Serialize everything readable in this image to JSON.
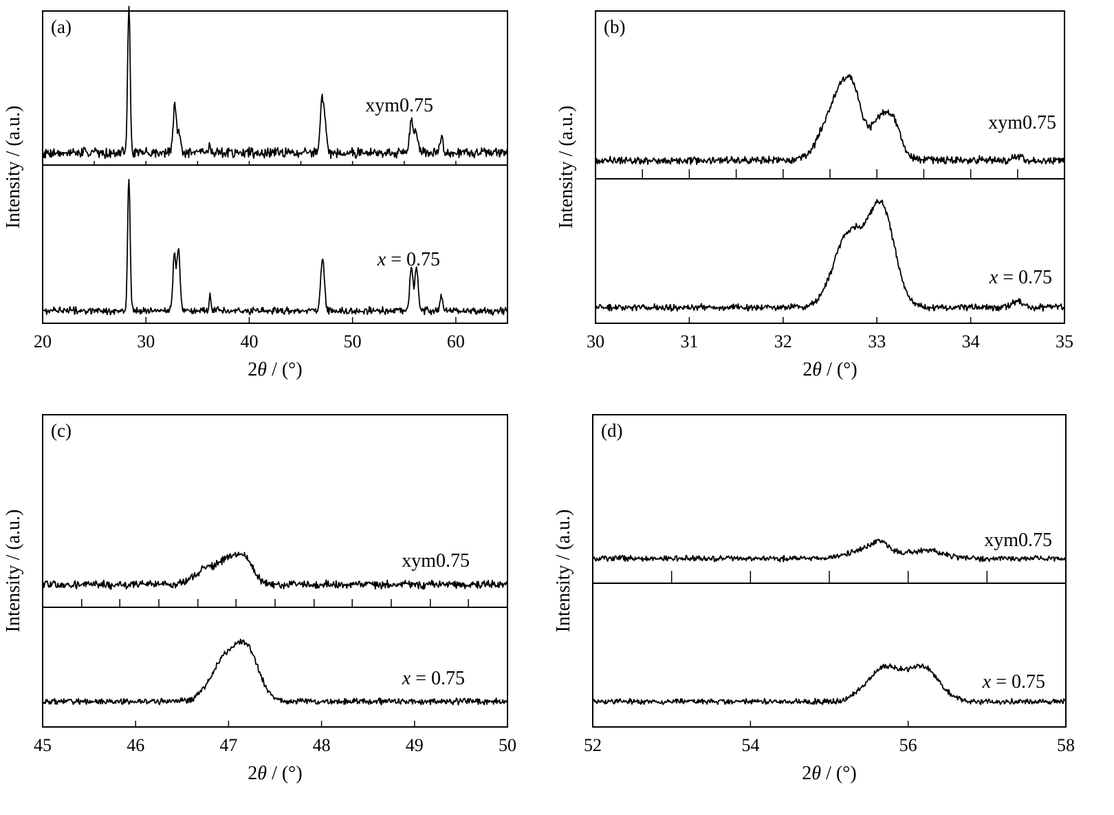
{
  "chart_data": [
    {
      "type": "line",
      "panel_label": "(a)",
      "xlabel_prefix": "2",
      "xlabel_symbol": "θ",
      "xlabel_suffix": " / (°)",
      "ylabel": "Intensity / (a.u.)",
      "xlim": [
        20,
        65
      ],
      "xticks": [
        "20",
        "30",
        "40",
        "50",
        "60"
      ],
      "xtick_values": [
        20,
        30,
        40,
        50,
        60
      ],
      "minor_ticks": [
        25,
        30,
        35,
        40,
        45,
        50,
        55,
        60
      ],
      "series": [
        {
          "name": "xym0.75",
          "name_var": "",
          "name_rest": "xym0.75",
          "noise": 0.05,
          "peaks": [
            [
              28.35,
              1.0,
              0.12
            ],
            [
              32.8,
              0.32,
              0.16
            ],
            [
              33.25,
              0.13,
              0.14
            ],
            [
              36.2,
              0.06,
              0.1
            ],
            [
              47.2,
              0.33,
              0.2
            ],
            [
              46.95,
              0.14,
              0.14
            ],
            [
              55.7,
              0.2,
              0.2
            ],
            [
              56.2,
              0.13,
              0.18
            ],
            [
              58.6,
              0.1,
              0.15
            ]
          ]
        },
        {
          "name": "x = 0.75",
          "name_var": "x",
          "name_rest": " = 0.75",
          "noise": 0.035,
          "peaks": [
            [
              28.35,
              1.0,
              0.12
            ],
            [
              32.75,
              0.43,
              0.14
            ],
            [
              33.15,
              0.47,
              0.14
            ],
            [
              36.2,
              0.13,
              0.08
            ],
            [
              47.1,
              0.4,
              0.18
            ],
            [
              55.7,
              0.33,
              0.16
            ],
            [
              56.2,
              0.32,
              0.16
            ],
            [
              58.6,
              0.1,
              0.14
            ]
          ]
        }
      ]
    },
    {
      "type": "line",
      "panel_label": "(b)",
      "xlabel_prefix": "2",
      "xlabel_symbol": "θ",
      "xlabel_suffix": " / (°)",
      "ylabel": "Intensity / (a.u.)",
      "xlim": [
        30,
        35
      ],
      "xticks": [
        "30",
        "31",
        "32",
        "33",
        "34",
        "35"
      ],
      "xtick_values": [
        30,
        31,
        32,
        33,
        34,
        35
      ],
      "minor_ticks": [
        30.5,
        31,
        31.5,
        32,
        32.5,
        33,
        33.5,
        34,
        34.5
      ],
      "series": [
        {
          "name": "xym0.75",
          "name_var": "",
          "name_rest": "xym0.75",
          "noise": 0.05,
          "peaks": [
            [
              32.6,
              0.62,
              0.16
            ],
            [
              32.75,
              0.35,
              0.1
            ],
            [
              33.05,
              0.4,
              0.1
            ],
            [
              33.2,
              0.25,
              0.08
            ],
            [
              34.5,
              0.04,
              0.05
            ]
          ]
        },
        {
          "name": "x = 0.75",
          "name_var": "x",
          "name_rest": " = 0.75",
          "noise": 0.03,
          "peaks": [
            [
              32.7,
              0.6,
              0.16
            ],
            [
              33.05,
              0.8,
              0.14
            ],
            [
              34.5,
              0.05,
              0.06
            ]
          ]
        }
      ]
    },
    {
      "type": "line",
      "panel_label": "(c)",
      "xlabel_prefix": "2",
      "xlabel_symbol": "θ",
      "xlabel_suffix": " / (°)",
      "ylabel": "Intensity / (a.u.)",
      "xlim": [
        45,
        50
      ],
      "xticks": [
        "45",
        "46",
        "47",
        "48",
        "49",
        "50"
      ],
      "xtick_values": [
        45,
        46,
        47,
        48,
        49,
        50
      ],
      "minor_ticks": [
        45.42,
        45.83,
        46.25,
        46.67,
        47.08,
        47.5,
        47.92,
        48.33,
        48.75,
        49.17,
        49.58
      ],
      "series": [
        {
          "name": "xym0.75",
          "name_var": "",
          "name_rest": "xym0.75",
          "noise": 0.07,
          "peaks": [
            [
              46.75,
              0.22,
              0.13
            ],
            [
              47.05,
              0.45,
              0.14
            ],
            [
              47.2,
              0.18,
              0.07
            ]
          ]
        },
        {
          "name": "x = 0.75",
          "name_var": "x",
          "name_rest": " = 0.75",
          "noise": 0.025,
          "peaks": [
            [
              46.95,
              0.45,
              0.15
            ],
            [
              47.2,
              0.55,
              0.13
            ]
          ]
        }
      ]
    },
    {
      "type": "line",
      "panel_label": "(d)",
      "xlabel_prefix": "2",
      "xlabel_symbol": "θ",
      "xlabel_suffix": " / (°)",
      "ylabel": "Intensity / (a.u.)",
      "xlim": [
        52,
        58
      ],
      "xticks": [
        "52",
        "54",
        "56",
        "58"
      ],
      "xtick_values": [
        52,
        54,
        56,
        58
      ],
      "minor_ticks": [
        53,
        54,
        55,
        56,
        57
      ],
      "series": [
        {
          "name": "xym0.75",
          "name_var": "",
          "name_rest": "xym0.75",
          "noise": 0.04,
          "peaks": [
            [
              55.55,
              0.2,
              0.25
            ],
            [
              56.25,
              0.13,
              0.2
            ],
            [
              55.65,
              0.12,
              0.08
            ]
          ]
        },
        {
          "name": "x = 0.75",
          "name_var": "x",
          "name_rest": " = 0.75",
          "noise": 0.025,
          "peaks": [
            [
              55.7,
              0.42,
              0.22
            ],
            [
              56.2,
              0.4,
              0.2
            ]
          ]
        }
      ]
    }
  ]
}
